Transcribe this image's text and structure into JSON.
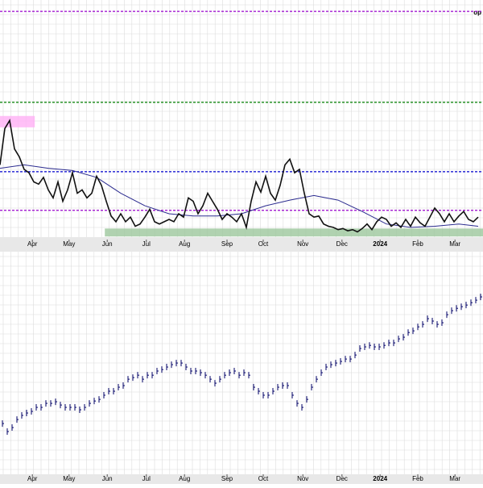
{
  "chart_data": [
    {
      "type": "line",
      "corner_text": "op",
      "xlim": [
        0,
        100
      ],
      "ylim": [
        10,
        31
      ],
      "xticks": [
        {
          "value": 6.7,
          "label": "Apr"
        },
        {
          "value": 14.3,
          "label": "May"
        },
        {
          "value": 22.2,
          "label": "Jun"
        },
        {
          "value": 30.3,
          "label": "Jul"
        },
        {
          "value": 38.2,
          "label": "Aug"
        },
        {
          "value": 47.0,
          "label": "Sep"
        },
        {
          "value": 54.5,
          "label": "Oct"
        },
        {
          "value": 62.7,
          "label": "Nov"
        },
        {
          "value": 70.8,
          "label": "Dec"
        },
        {
          "value": 78.7,
          "label": "2024"
        },
        {
          "value": 86.5,
          "label": "Feb"
        },
        {
          "value": 94.2,
          "label": "Mar"
        }
      ],
      "levels": [
        {
          "value": 30.0,
          "color": "#9900cc"
        },
        {
          "value": 22.0,
          "color": "#008000"
        },
        {
          "value": 15.9,
          "color": "#0000cc"
        },
        {
          "value": 12.5,
          "color": "#9900cc"
        }
      ],
      "bands": [
        {
          "from": 10.2,
          "to": 10.9,
          "x": [
            21.7,
            100
          ],
          "color": "#9cc79c"
        },
        {
          "from": 19.8,
          "to": 20.8,
          "x": [
            0,
            7.2
          ],
          "color": "#ffb0f5"
        }
      ],
      "series": [
        {
          "color": "#111111",
          "values": [
            16.5,
            19.7,
            20.4,
            17.9,
            17.2,
            16.1,
            15.8,
            15.0,
            14.8,
            15.4,
            14.3,
            13.6,
            15.0,
            13.3,
            14.3,
            15.8,
            14.0,
            14.3,
            13.6,
            14.0,
            15.5,
            14.7,
            13.3,
            12.0,
            11.5,
            12.2,
            11.5,
            11.9,
            11.1,
            11.3,
            11.9,
            12.6,
            11.5,
            11.3,
            11.5,
            11.7,
            11.5,
            12.2,
            11.9,
            13.6,
            13.3,
            12.2,
            12.9,
            14.0,
            13.3,
            12.6,
            11.7,
            12.2,
            11.9,
            11.5,
            12.2,
            11.0,
            13.3,
            15.0,
            14.1,
            15.5,
            14.0,
            13.4,
            14.7,
            16.5,
            17.0,
            15.8,
            16.1,
            14.0,
            12.2,
            11.9,
            12.0,
            11.3,
            11.1,
            11.0,
            10.8,
            10.9,
            10.7,
            10.8,
            10.6,
            10.9,
            11.3,
            10.8,
            11.5,
            11.9,
            11.7,
            11.1,
            11.4,
            11.0,
            11.7,
            11.1,
            11.9,
            11.4,
            11.1,
            11.9,
            12.7,
            12.2,
            11.5,
            12.2,
            11.5,
            12.0,
            12.4,
            11.7,
            11.5,
            11.9
          ]
        },
        {
          "color": "#2b2b8f",
          "x": [
            0,
            5,
            10,
            15,
            20,
            25,
            30,
            35,
            40,
            45,
            50,
            55,
            60,
            65,
            70,
            75,
            80,
            85,
            90,
            95,
            99
          ],
          "values": [
            16.2,
            16.5,
            16.2,
            16.0,
            15.4,
            14.0,
            12.9,
            12.2,
            12.0,
            12.0,
            12.2,
            12.9,
            13.4,
            13.8,
            13.4,
            12.4,
            11.3,
            11.0,
            11.1,
            11.3,
            11.1
          ]
        }
      ]
    },
    {
      "type": "price",
      "xlim": [
        0,
        100
      ],
      "ylim": [
        3750,
        5300
      ],
      "xticks": [
        {
          "value": 6.7,
          "label": "Apr"
        },
        {
          "value": 14.3,
          "label": "May"
        },
        {
          "value": 22.2,
          "label": "Jun"
        },
        {
          "value": 30.3,
          "label": "Jul"
        },
        {
          "value": 38.2,
          "label": "Aug"
        },
        {
          "value": 47.0,
          "label": "Sep"
        },
        {
          "value": 54.5,
          "label": "Oct"
        },
        {
          "value": 62.7,
          "label": "Nov"
        },
        {
          "value": 70.8,
          "label": "Dec"
        },
        {
          "value": 78.7,
          "label": "2024"
        },
        {
          "value": 86.5,
          "label": "Feb"
        },
        {
          "value": 94.2,
          "label": "Mar"
        }
      ],
      "color": "#000066",
      "values": [
        4103,
        4049,
        4076,
        4130,
        4158,
        4174,
        4185,
        4212,
        4212,
        4239,
        4239,
        4250,
        4228,
        4212,
        4212,
        4212,
        4196,
        4212,
        4239,
        4255,
        4266,
        4294,
        4321,
        4321,
        4348,
        4359,
        4402,
        4413,
        4429,
        4402,
        4429,
        4429,
        4457,
        4467,
        4484,
        4500,
        4511,
        4511,
        4484,
        4457,
        4457,
        4446,
        4429,
        4402,
        4375,
        4402,
        4429,
        4446,
        4457,
        4429,
        4446,
        4429,
        4348,
        4321,
        4294,
        4294,
        4321,
        4348,
        4359,
        4359,
        4294,
        4239,
        4212,
        4266,
        4348,
        4402,
        4446,
        4484,
        4500,
        4511,
        4522,
        4538,
        4538,
        4565,
        4609,
        4620,
        4630,
        4620,
        4620,
        4630,
        4647,
        4647,
        4674,
        4685,
        4717,
        4728,
        4755,
        4772,
        4810,
        4794,
        4772,
        4783,
        4837,
        4864,
        4880,
        4891,
        4902,
        4918,
        4935,
        4957
      ]
    }
  ]
}
